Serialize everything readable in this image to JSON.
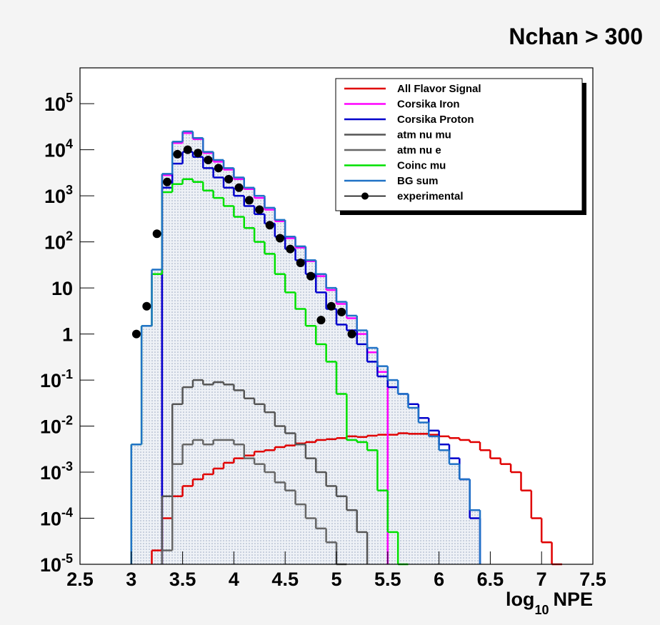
{
  "chart_data": {
    "type": "histogram",
    "title": "Nchan > 300",
    "xlabel": [
      "log",
      "10",
      "NPE"
    ],
    "xlim": [
      2.5,
      7.5
    ],
    "xticks": [
      2.5,
      3,
      3.5,
      4,
      4.5,
      5,
      5.5,
      6,
      6.5,
      7,
      7.5
    ],
    "ylim": [
      1e-05,
      600000
    ],
    "log_y": true,
    "yticks": [
      {
        "value": 1e-05,
        "label": "10",
        "exponent": "-5"
      },
      {
        "value": 0.0001,
        "label": "10",
        "exponent": "-4"
      },
      {
        "value": 0.001,
        "label": "10",
        "exponent": "-3"
      },
      {
        "value": 0.01,
        "label": "10",
        "exponent": "-2"
      },
      {
        "value": 0.1,
        "label": "10",
        "exponent": "-1"
      },
      1,
      10,
      {
        "value": 100,
        "label": "10",
        "exponent": "2"
      },
      {
        "value": 1000,
        "label": "10",
        "exponent": "3"
      },
      {
        "value": 10000,
        "label": "10",
        "exponent": "4"
      },
      {
        "value": 100000,
        "label": "10",
        "exponent": "5"
      }
    ],
    "legend": "upper right",
    "bins": [
      3.0,
      3.1,
      3.2,
      3.3,
      3.4,
      3.5,
      3.6,
      3.7,
      3.8,
      3.9,
      4.0,
      4.1,
      4.2,
      4.3,
      4.4,
      4.5,
      4.6,
      4.7,
      4.8,
      4.9,
      5.0,
      5.1,
      5.2,
      5.3,
      5.4,
      5.5,
      5.6,
      5.7,
      5.8,
      5.9,
      6.0,
      6.1,
      6.2,
      6.3,
      6.4,
      6.5,
      6.6,
      6.7,
      6.8,
      6.9,
      7.0,
      7.1,
      7.2
    ],
    "series": [
      {
        "name": "All Flavor Signal",
        "color": "#e00000",
        "style": "step",
        "values": [
          null,
          null,
          2e-05,
          0.0001,
          0.0003,
          0.0005,
          0.0007,
          0.0009,
          0.0012,
          0.0016,
          0.002,
          0.0023,
          0.0028,
          0.003,
          0.0035,
          0.0038,
          0.0042,
          0.0045,
          0.005,
          0.0052,
          0.0055,
          0.006,
          0.0058,
          0.0062,
          0.0065,
          0.0065,
          0.007,
          0.0068,
          0.0068,
          0.0065,
          0.006,
          0.0055,
          0.005,
          0.0045,
          0.003,
          0.002,
          0.0015,
          0.001,
          0.0004,
          0.0001,
          3e-05,
          1e-05
        ]
      },
      {
        "name": "Corsika Iron",
        "color": "#ff00ff",
        "style": "step",
        "values": [
          null,
          null,
          null,
          2800,
          14000,
          23000,
          17000,
          8500,
          5500,
          3700,
          2300,
          1400,
          900,
          500,
          280,
          120,
          75,
          38,
          18,
          9,
          4.5,
          2.2,
          1,
          0.4,
          0.15,
          null,
          null,
          null,
          null,
          null,
          null,
          null,
          null,
          null,
          null,
          null,
          null,
          null,
          null,
          null,
          null,
          null
        ]
      },
      {
        "name": "Corsika Proton",
        "color": "#0000cc",
        "style": "step",
        "values": [
          null,
          null,
          null,
          1500,
          5000,
          9000,
          7000,
          4000,
          2500,
          1500,
          1000,
          600,
          400,
          250,
          130,
          70,
          40,
          20,
          8,
          3.5,
          1.6,
          1.2,
          0.6,
          0.25,
          0.12,
          0.07,
          0.05,
          0.03,
          0.015,
          0.008,
          0.004,
          0.002,
          0.0007,
          0.0001,
          null,
          null,
          null,
          null,
          null,
          null,
          null,
          null
        ]
      },
      {
        "name": "atm nu mu",
        "color": "#555555",
        "style": "step",
        "values": [
          null,
          null,
          null,
          0.0003,
          0.03,
          0.07,
          0.1,
          0.08,
          0.09,
          0.08,
          0.06,
          0.04,
          0.03,
          0.02,
          0.01,
          0.007,
          0.004,
          0.002,
          0.001,
          0.0005,
          0.0003,
          0.00015,
          5e-05,
          null,
          null,
          null,
          null,
          null,
          null,
          null,
          null,
          null,
          null,
          null,
          null,
          null,
          null,
          null,
          null,
          null,
          null,
          null
        ]
      },
      {
        "name": "atm nu e",
        "color": "#666666",
        "style": "step",
        "values": [
          null,
          null,
          null,
          2e-05,
          0.0015,
          0.004,
          0.005,
          0.004,
          0.005,
          0.005,
          0.004,
          0.002,
          0.0015,
          0.001,
          0.0006,
          0.0004,
          0.0002,
          0.0001,
          6e-05,
          3e-05,
          1e-05,
          null,
          null,
          null,
          null,
          null,
          null,
          null,
          null,
          null,
          null,
          null,
          null,
          null,
          null,
          null,
          null,
          null,
          null,
          null,
          null,
          null
        ]
      },
      {
        "name": "Coinc mu",
        "color": "#00e000",
        "style": "step",
        "values": [
          0.004,
          1.5,
          20,
          1200,
          1800,
          2300,
          2000,
          1300,
          900,
          600,
          350,
          200,
          100,
          55,
          20,
          8,
          3.5,
          1.5,
          0.6,
          0.25,
          0.05,
          0.005,
          0.0045,
          0.003,
          0.0004,
          5e-05,
          1e-05,
          null,
          null,
          null,
          null,
          null,
          null,
          null,
          null,
          null,
          null,
          null,
          null,
          null,
          null,
          null
        ]
      },
      {
        "name": "BG sum",
        "color": "#1f72c6",
        "style": "filled-step",
        "fill": "#c9d3e3",
        "values": [
          0.004,
          1.5,
          25,
          3000,
          15000,
          25000,
          18000,
          9000,
          6000,
          4000,
          2500,
          1500,
          1000,
          550,
          300,
          130,
          80,
          40,
          20,
          10,
          5,
          2.5,
          1.2,
          0.5,
          0.2,
          0.1,
          0.05,
          0.025,
          0.012,
          0.006,
          0.003,
          0.0015,
          0.0007,
          0.00015,
          null,
          null,
          null,
          null,
          null,
          null,
          null,
          null
        ]
      },
      {
        "name": "experimental",
        "color": "#000000",
        "style": "points",
        "values": [
          1,
          4,
          150,
          2000,
          8000,
          10000,
          8500,
          6000,
          4000,
          2300,
          1500,
          800,
          500,
          230,
          120,
          70,
          35,
          18,
          2,
          4,
          3,
          1,
          null,
          null,
          null,
          null,
          null,
          null,
          null,
          null,
          null,
          null,
          null,
          null,
          null,
          null,
          null,
          null,
          null,
          null,
          null,
          null
        ]
      }
    ]
  }
}
